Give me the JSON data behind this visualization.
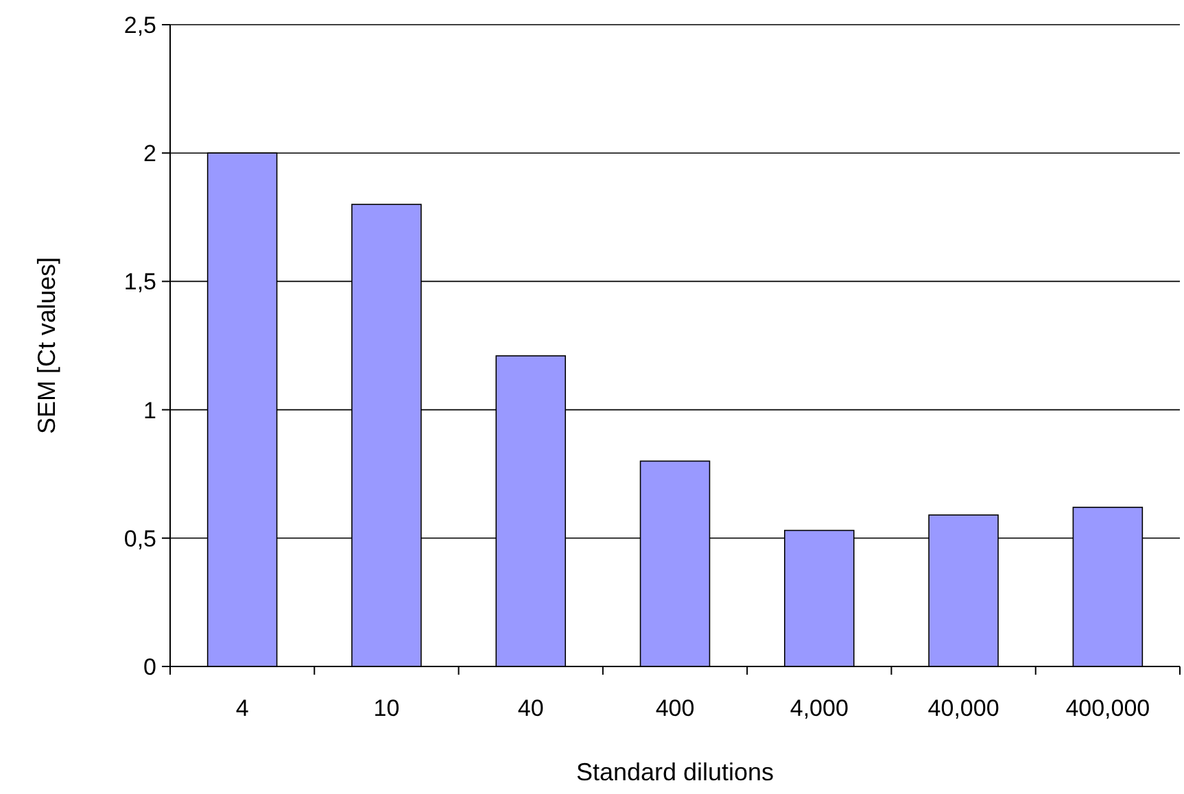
{
  "chart_data": {
    "type": "bar",
    "xlabel": "Standard dilutions",
    "ylabel": "SEM [Ct values]",
    "categories": [
      "4",
      "10",
      "40",
      "400",
      "4,000",
      "40,000",
      "400,000"
    ],
    "values": [
      2.0,
      1.8,
      1.21,
      0.8,
      0.53,
      0.59,
      0.62
    ],
    "color": "#9999ff",
    "ylim": [
      0,
      2.5
    ],
    "yticks": [
      0,
      {
        "value": 0.5,
        "label": "0,5"
      },
      1,
      {
        "value": 1.5,
        "label": "1,5"
      },
      2,
      {
        "value": 2.5,
        "label": "2,5"
      }
    ],
    "grid": "y"
  }
}
